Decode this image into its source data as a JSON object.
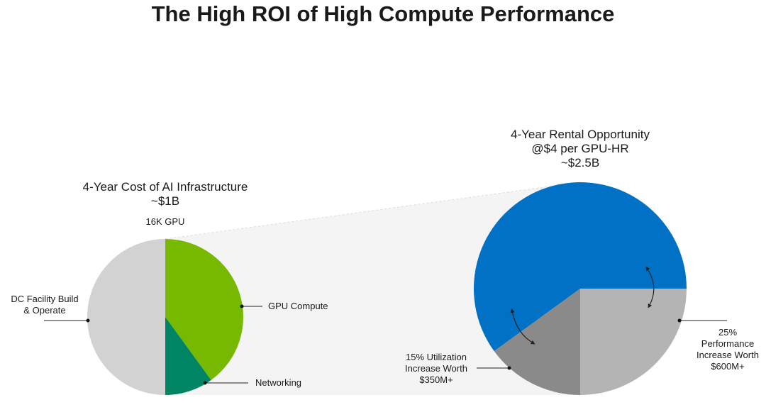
{
  "title": "The High ROI of High Compute Performance",
  "chart_data": [
    {
      "type": "pie",
      "title": "4-Year Cost of AI Infrastructure",
      "total": "~$1B",
      "annotation": "16K GPU",
      "categories": [
        "GPU Compute",
        "Networking",
        "DC Facility Build\n& Operate"
      ],
      "values": [
        40,
        10,
        50
      ],
      "colors": [
        "#76b900",
        "#008564",
        "#d2d2d2"
      ]
    },
    {
      "type": "pie",
      "title": "4-Year Rental Opportunity",
      "subtitle": "@$4 per GPU-HR",
      "total": "~$2.5B",
      "categories": [
        "25%\nPerformance\nIncrease Worth\n$600M+",
        "15% Utilization\nIncrease Worth\n$350M+",
        null
      ],
      "values": [
        25,
        15,
        60
      ],
      "colors": [
        "#b4b4b4",
        "#8a8a8a",
        "#0071c5"
      ]
    }
  ]
}
